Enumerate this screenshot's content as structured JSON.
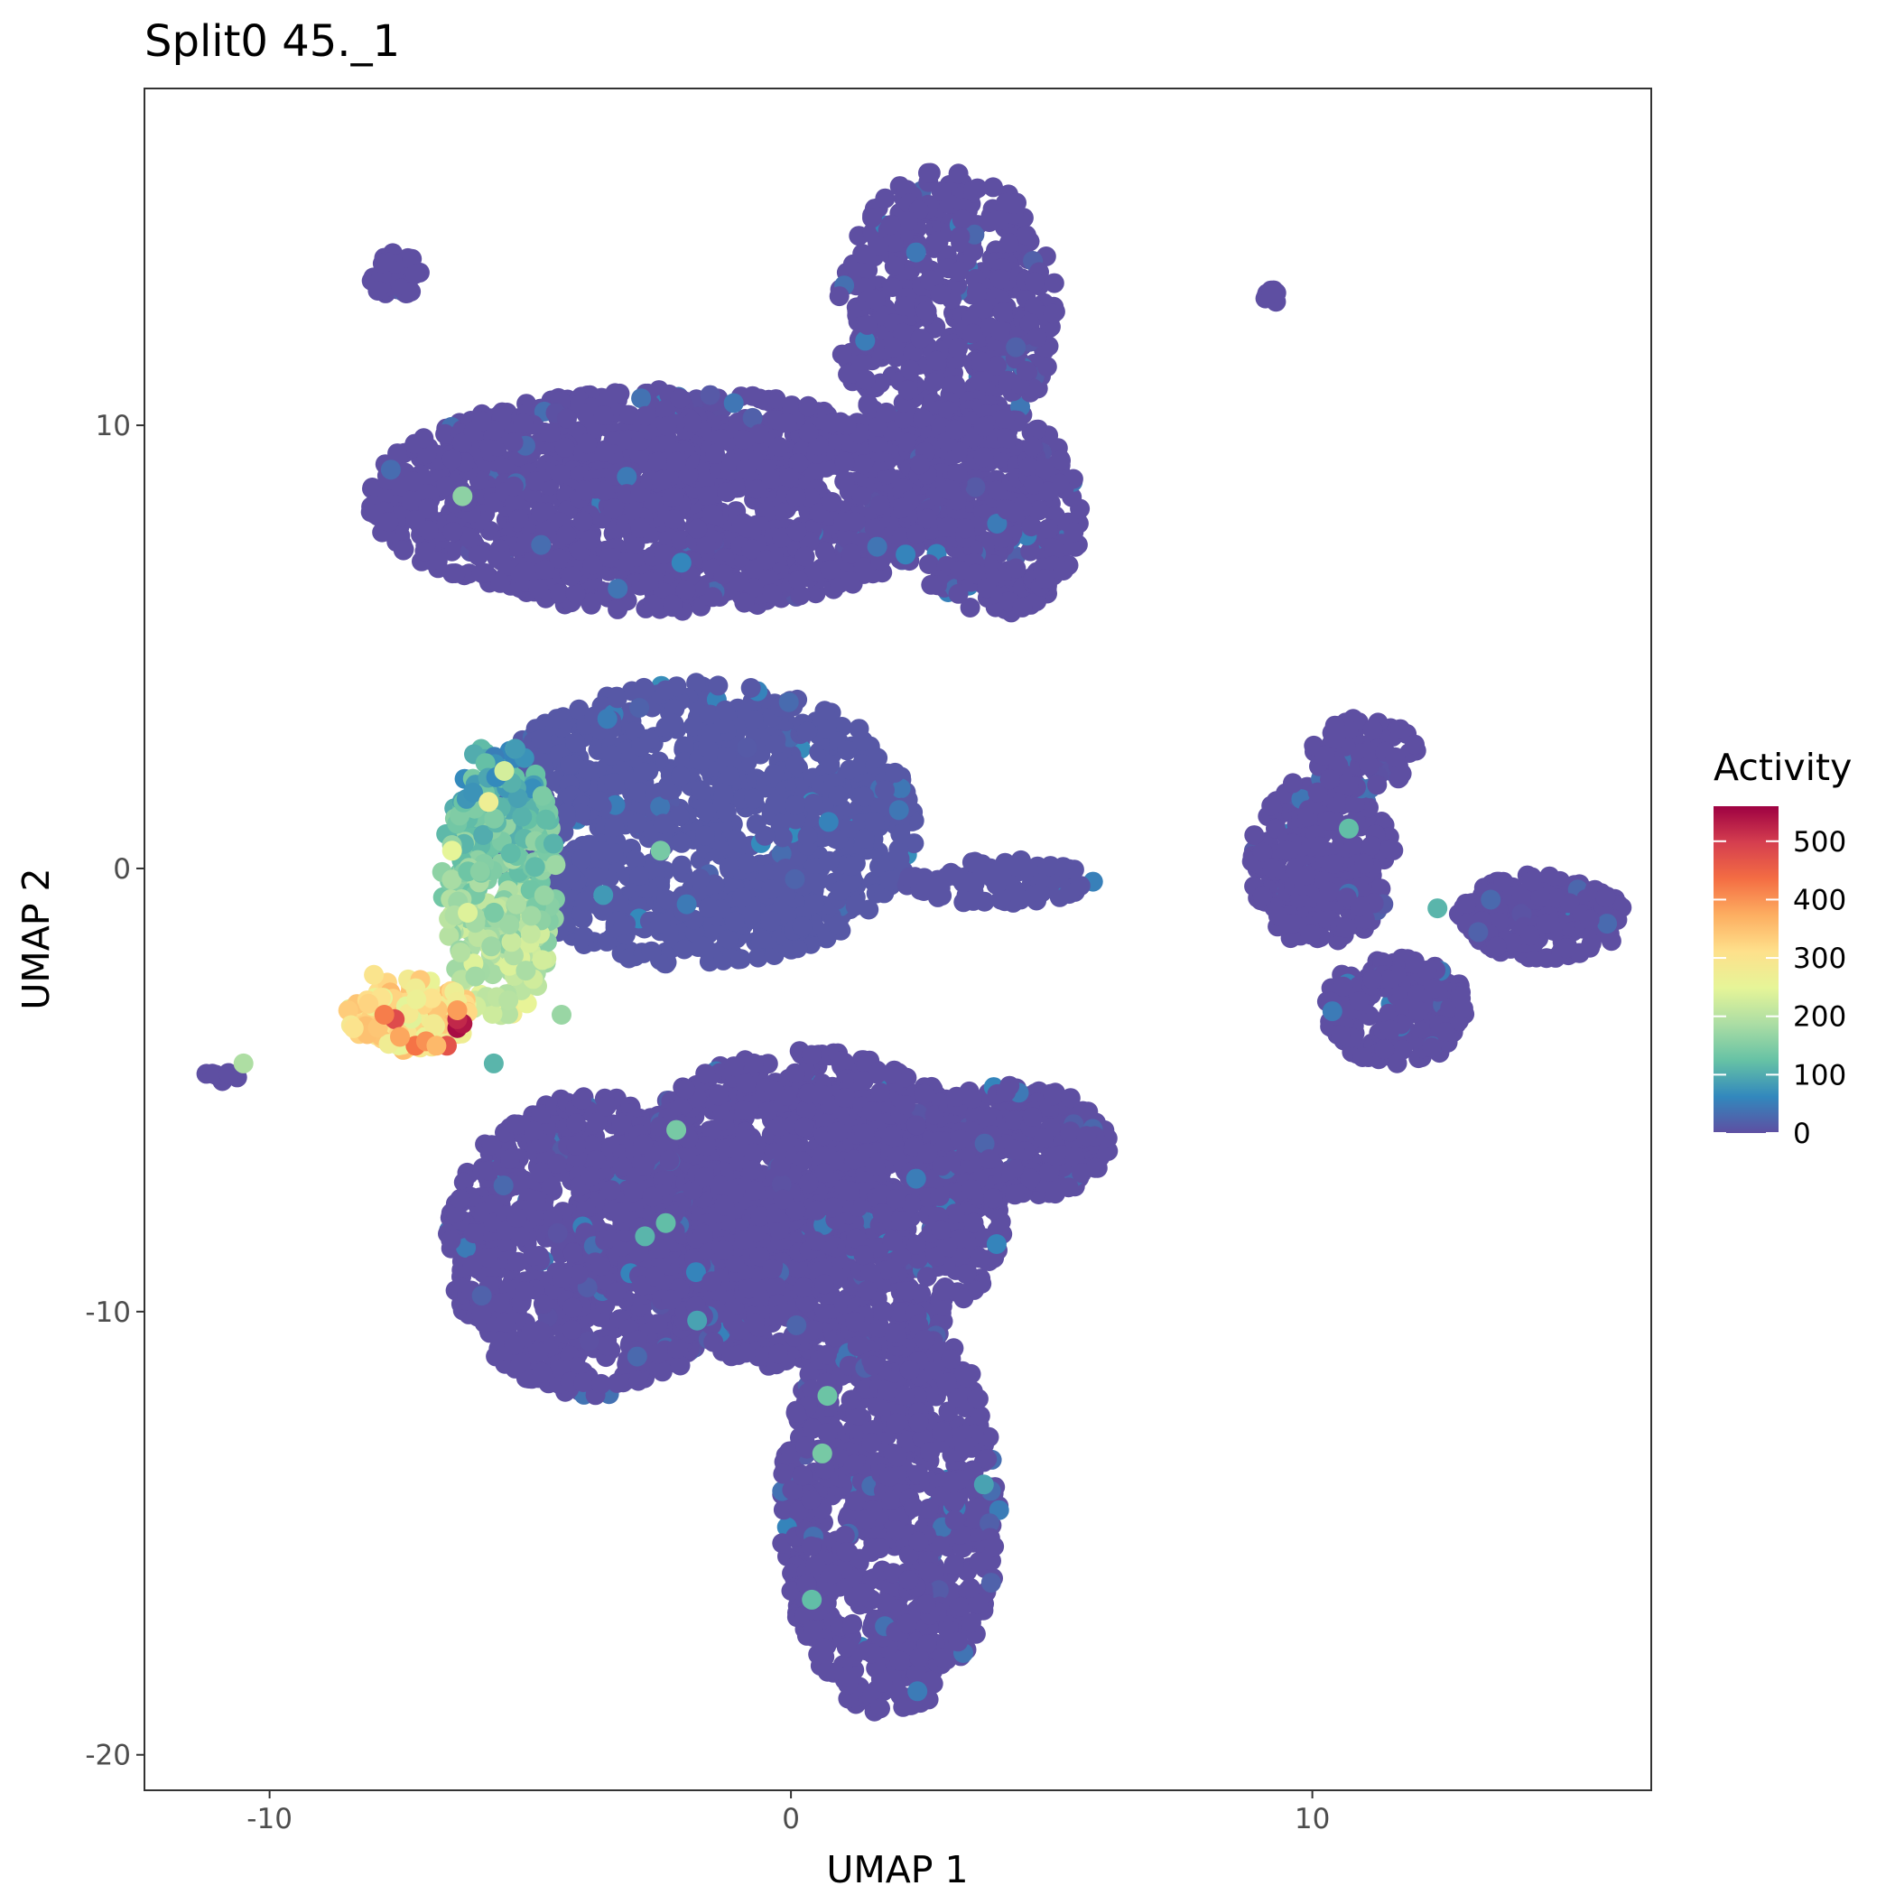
{
  "chart_data": {
    "type": "scatter",
    "title": "Split0 45._1",
    "xlabel": "UMAP 1",
    "ylabel": "UMAP 2",
    "xlim": [
      -12.4,
      16.5
    ],
    "ylim": [
      -20.8,
      17.6
    ],
    "x_ticks": [
      -10,
      0,
      10
    ],
    "y_ticks": [
      -20,
      -10,
      0,
      10
    ],
    "x_tick_labels": [
      "-10",
      "0",
      "10"
    ],
    "y_tick_labels": [
      "-20",
      "-10",
      "0",
      "10"
    ],
    "grid": false,
    "legend": {
      "title": "Activity",
      "position": "right",
      "min": 0,
      "max": 560,
      "ticks": [
        0,
        100,
        200,
        300,
        400,
        500
      ],
      "tick_labels": [
        "0",
        "100",
        "200",
        "300",
        "400",
        "500"
      ],
      "palette": [
        "#5E4FA2",
        "#3288BD",
        "#66C2A5",
        "#ABDDA4",
        "#E6F598",
        "#FEE08B",
        "#FDAE61",
        "#F46D43",
        "#D53E4F",
        "#9E0142"
      ]
    },
    "clusters": [
      {
        "name": "top-left-blob",
        "cx": -2.5,
        "cy": 8.3,
        "rx": 5.6,
        "ry": 2.5,
        "n": 1400,
        "activity": 0
      },
      {
        "name": "top-right-blob",
        "cx": 3.0,
        "cy": 12.5,
        "rx": 2.1,
        "ry": 3.3,
        "n": 520,
        "activity": 0
      },
      {
        "name": "top-right-lower",
        "cx": 3.8,
        "cy": 8.0,
        "rx": 1.8,
        "ry": 2.3,
        "n": 380,
        "activity": 0
      },
      {
        "name": "middle-blob",
        "cx": -1.8,
        "cy": 1.0,
        "rx": 4.2,
        "ry": 3.2,
        "n": 1100,
        "activity": 10
      },
      {
        "name": "middle-right-arm",
        "cx": 4.0,
        "cy": -0.3,
        "rx": 1.8,
        "ry": 0.5,
        "n": 90,
        "activity": 5
      },
      {
        "name": "lower-left-blob",
        "cx": -3.8,
        "cy": -8.5,
        "rx": 2.8,
        "ry": 3.4,
        "n": 950,
        "activity": 0
      },
      {
        "name": "lower-center-blob",
        "cx": 0.3,
        "cy": -7.7,
        "rx": 3.8,
        "ry": 3.6,
        "n": 1500,
        "activity": 0
      },
      {
        "name": "lower-right-arm",
        "cx": 4.2,
        "cy": -6.2,
        "rx": 1.9,
        "ry": 1.3,
        "n": 300,
        "activity": 0
      },
      {
        "name": "bottom-blob",
        "cx": 1.9,
        "cy": -14.5,
        "rx": 2.1,
        "ry": 4.6,
        "n": 850,
        "activity": 0
      },
      {
        "name": "far-right-left-part",
        "cx": 10.2,
        "cy": 0.2,
        "rx": 1.4,
        "ry": 2.0,
        "n": 280,
        "activity": 0
      },
      {
        "name": "far-right-upper",
        "cx": 11.0,
        "cy": 2.6,
        "rx": 1.0,
        "ry": 0.8,
        "n": 90,
        "activity": 0
      },
      {
        "name": "far-right-lower",
        "cx": 11.6,
        "cy": -3.2,
        "rx": 1.4,
        "ry": 1.2,
        "n": 220,
        "activity": 0
      },
      {
        "name": "far-right-arm",
        "cx": 14.4,
        "cy": -1.1,
        "rx": 1.6,
        "ry": 1.0,
        "n": 180,
        "activity": 0
      },
      {
        "name": "small-top-left",
        "cx": -7.6,
        "cy": 13.4,
        "rx": 0.5,
        "ry": 0.5,
        "n": 35,
        "activity": 0
      },
      {
        "name": "small-top-right",
        "cx": 9.2,
        "cy": 12.9,
        "rx": 0.15,
        "ry": 0.2,
        "n": 8,
        "activity": 0
      },
      {
        "name": "left-tail",
        "cx": -10.9,
        "cy": -4.7,
        "rx": 0.35,
        "ry": 0.2,
        "n": 8,
        "activity": 0
      },
      {
        "name": "active-stream",
        "cx": -5.6,
        "cy": -0.3,
        "rx": 1.1,
        "ry": 3.2,
        "n": 350,
        "activity": 180
      },
      {
        "name": "active-tip",
        "cx": -7.3,
        "cy": -3.3,
        "rx": 1.2,
        "ry": 0.8,
        "n": 160,
        "activity": 300
      }
    ],
    "highlight_points": [
      [
        -6.4,
        -3.6,
        550
      ],
      [
        -6.3,
        -3.5,
        540
      ],
      [
        -6.4,
        -3.4,
        520
      ],
      [
        -7.6,
        -3.4,
        480
      ],
      [
        -6.6,
        -4.0,
        470
      ],
      [
        -7.2,
        -4.0,
        430
      ],
      [
        -7.8,
        -3.3,
        420
      ],
      [
        -7.0,
        -3.9,
        400
      ],
      [
        -6.4,
        -3.2,
        390
      ],
      [
        -7.5,
        -3.8,
        380
      ],
      [
        -6.8,
        -4.0,
        360
      ],
      [
        -8.0,
        -2.4,
        300
      ],
      [
        -5.8,
        1.5,
        270
      ],
      [
        -5.5,
        2.2,
        230
      ],
      [
        -6.5,
        0.4,
        250
      ],
      [
        -6.2,
        -1.0,
        240
      ],
      [
        -10.5,
        -4.4,
        190
      ],
      [
        -6.3,
        8.4,
        160
      ],
      [
        -2.5,
        0.4,
        140
      ],
      [
        -2.2,
        -5.9,
        140
      ],
      [
        -2.8,
        -8.3,
        110
      ],
      [
        -2.4,
        -8.0,
        120
      ],
      [
        0.7,
        -11.9,
        130
      ],
      [
        0.6,
        -13.2,
        140
      ],
      [
        0.4,
        -16.5,
        120
      ],
      [
        10.7,
        0.9,
        120
      ],
      [
        12.4,
        -0.9,
        110
      ],
      [
        -5.7,
        -4.4,
        110
      ],
      [
        -4.4,
        -3.3,
        170
      ],
      [
        -3.6,
        -0.6,
        80
      ],
      [
        -2.1,
        6.9,
        60
      ],
      [
        2.4,
        13.9,
        45
      ],
      [
        3.7,
        -13.9,
        90
      ],
      [
        2.4,
        -7.0,
        50
      ],
      [
        -1.8,
        -10.2,
        90
      ]
    ]
  }
}
